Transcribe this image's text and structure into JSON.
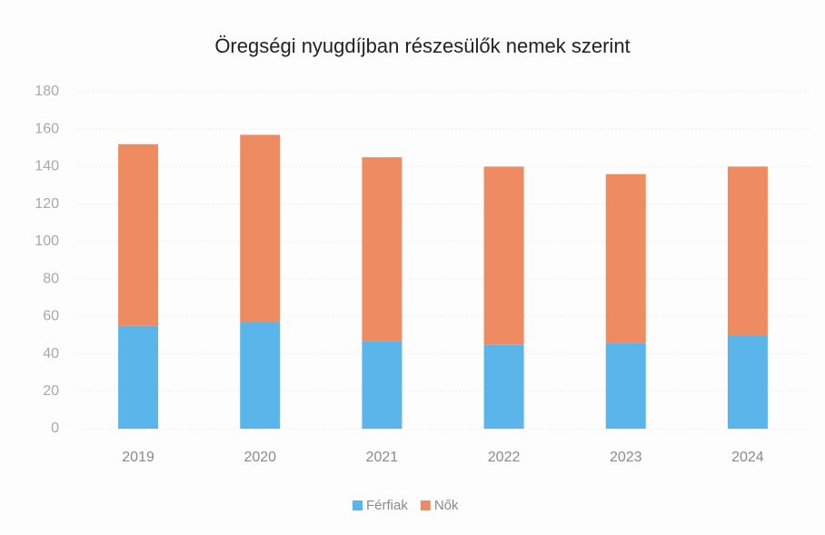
{
  "chart_data": {
    "type": "stacked_bar",
    "title": "Öregségi nyugdíjban  részesülők nemek szerint",
    "categories": [
      "2019",
      "2020",
      "2021",
      "2022",
      "2023",
      "2024"
    ],
    "series": [
      {
        "name": "Férfiak",
        "color": "#5ab6ea",
        "values": [
          55,
          57,
          47,
          45,
          46,
          50
        ]
      },
      {
        "name": "Nők",
        "color": "#ee8b60",
        "values": [
          97,
          100,
          98,
          95,
          90,
          90
        ]
      }
    ],
    "ylim": [
      0,
      180
    ],
    "yticks": [
      0,
      20,
      40,
      60,
      80,
      100,
      120,
      140,
      160,
      180
    ],
    "grid": true,
    "legend": "bottom"
  }
}
